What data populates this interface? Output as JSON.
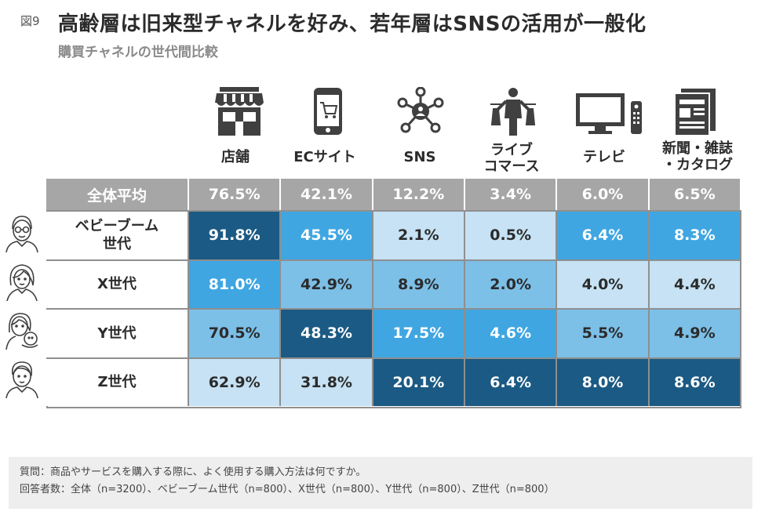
{
  "figure_label": "図9",
  "title": "高齢層は旧来型チャネルを好み、若年層はSNSの活用が一般化",
  "subtitle": "購買チャネルの世代間比較",
  "colors": {
    "header_gray": "#a6a6a6",
    "very_light_blue": "#c6e2f4",
    "light_blue": "#7cbfe7",
    "mid_blue": "#3fa6e2",
    "dark_blue": "#1b5a84"
  },
  "channels": [
    {
      "label": "店舗",
      "icon": "store-icon"
    },
    {
      "label": "ECサイト",
      "icon": "smartphone-cart-icon"
    },
    {
      "label": "SNS",
      "icon": "social-network-icon"
    },
    {
      "label": "ライブ\nコマース",
      "icon": "live-commerce-icon"
    },
    {
      "label": "テレビ",
      "icon": "tv-icon"
    },
    {
      "label": "新聞・雑誌\n・カタログ",
      "icon": "newspaper-icon"
    }
  ],
  "chart_data": {
    "type": "table",
    "title": "購買チャネルの世代間比較",
    "columns": [
      "店舗",
      "ECサイト",
      "SNS",
      "ライブコマース",
      "テレビ",
      "新聞・雑誌・カタログ"
    ],
    "average": {
      "label": "全体平均",
      "values": [
        "76.5%",
        "42.1%",
        "12.2%",
        "3.4%",
        "6.0%",
        "6.5%"
      ]
    },
    "rows": [
      {
        "label": "ベビーブーム\n世代",
        "avatar": "senior-man-glasses-avatar-icon",
        "values": [
          "91.8%",
          "45.5%",
          "2.1%",
          "0.5%",
          "6.4%",
          "8.3%"
        ],
        "shades": [
          4,
          3,
          1,
          1,
          3,
          3
        ]
      },
      {
        "label": "X世代",
        "avatar": "middle-aged-woman-avatar-icon",
        "values": [
          "81.0%",
          "42.9%",
          "8.9%",
          "2.0%",
          "4.0%",
          "4.4%"
        ],
        "shades": [
          3,
          2,
          2,
          2,
          1,
          1
        ]
      },
      {
        "label": "Y世代",
        "avatar": "parent-with-baby-avatar-icon",
        "values": [
          "70.5%",
          "48.3%",
          "17.5%",
          "4.6%",
          "5.5%",
          "4.9%"
        ],
        "shades": [
          2,
          4,
          3,
          3,
          2,
          2
        ]
      },
      {
        "label": "Z世代",
        "avatar": "young-man-avatar-icon",
        "values": [
          "62.9%",
          "31.8%",
          "20.1%",
          "6.4%",
          "8.0%",
          "8.6%"
        ],
        "shades": [
          1,
          1,
          4,
          4,
          4,
          4
        ]
      }
    ]
  },
  "notes": {
    "question": "質問：商品やサービスを購入する際に、よく使用する購入方法は何ですか。",
    "respondents": "回答者数：全体（n=3200）、ベビーブーム世代（n=800）、X世代（n=800）、Y世代（n=800）、Z世代（n=800）"
  }
}
